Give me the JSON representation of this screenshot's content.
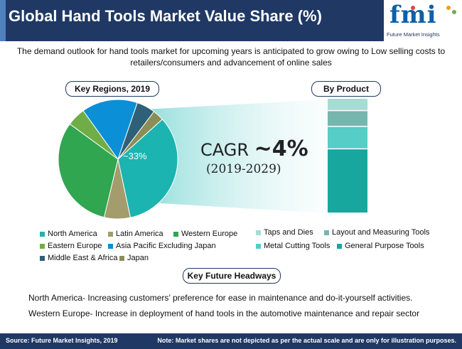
{
  "header": {
    "title": "Global Hand Tools Market Value Share (%)",
    "logo_text": "fmi",
    "logo_subtext": "Future Market Insights"
  },
  "subtitle": "The demand outlook for hand tools market for upcoming years is anticipated to grow owing to Low selling costs to retailers/consumers and advancement of online sales",
  "regions_title": "Key Regions, 2019",
  "product_title": "By Product",
  "cagr": {
    "label": "CAGR",
    "value": "~4%",
    "period": "(2019-2029)"
  },
  "chart_data": [
    {
      "type": "pie",
      "title": "Key Regions, 2019",
      "slice_label": "~33%",
      "categories": [
        "North America",
        "Latin America",
        "Western Europe",
        "Eastern Europe",
        "Asia Pacific Excluding Japan",
        "Middle East & Africa",
        "Japan"
      ],
      "values": [
        33,
        7,
        31,
        5,
        15,
        5,
        3
      ],
      "colors": [
        "#1cb4b0",
        "#a39c6c",
        "#2fa64f",
        "#70ad47",
        "#0b8fd6",
        "#2e6077",
        "#8b8e56"
      ]
    },
    {
      "type": "bar",
      "title": "By Product",
      "stacked": true,
      "categories": [
        "General Purpose Tools",
        "Metal Cutting Tools",
        "Layout and Measuring Tools",
        "Taps and Dies"
      ],
      "values": [
        56,
        19,
        13,
        10
      ],
      "colors": [
        "#17a79f",
        "#56cdc6",
        "#76b6ae",
        "#a8dbd4"
      ]
    }
  ],
  "legend_regions": [
    {
      "label": "North America",
      "color": "#1cb4b0"
    },
    {
      "label": "Latin America",
      "color": "#a39c6c"
    },
    {
      "label": "Western Europe",
      "color": "#2fa64f"
    },
    {
      "label": "Eastern Europe",
      "color": "#70ad47"
    },
    {
      "label": "Asia Pacific Excluding Japan",
      "color": "#0b8fd6"
    },
    {
      "label": "Middle East & Africa",
      "color": "#2e6077"
    },
    {
      "label": "Japan",
      "color": "#8b8e56"
    }
  ],
  "legend_products": [
    {
      "label": "Taps and Dies",
      "color": "#a8dbd4"
    },
    {
      "label": "Layout and Measuring Tools",
      "color": "#76b6ae"
    },
    {
      "label": "Metal Cutting Tools",
      "color": "#56cdc6"
    },
    {
      "label": "General Purpose Tools",
      "color": "#17a79f"
    }
  ],
  "headways_title": "Key Future Headways",
  "headways": [
    "North America- Increasing customers’ preference for ease in maintenance and do-it-yourself activities.",
    "Western Europe- Increase in deployment of hand tools in the automotive maintenance and repair sector"
  ],
  "footer": {
    "source": "Source: Future Market Insights, 2019",
    "note": "Note: Market shares are not depicted as per the actual scale and are only for illustration purposes."
  }
}
